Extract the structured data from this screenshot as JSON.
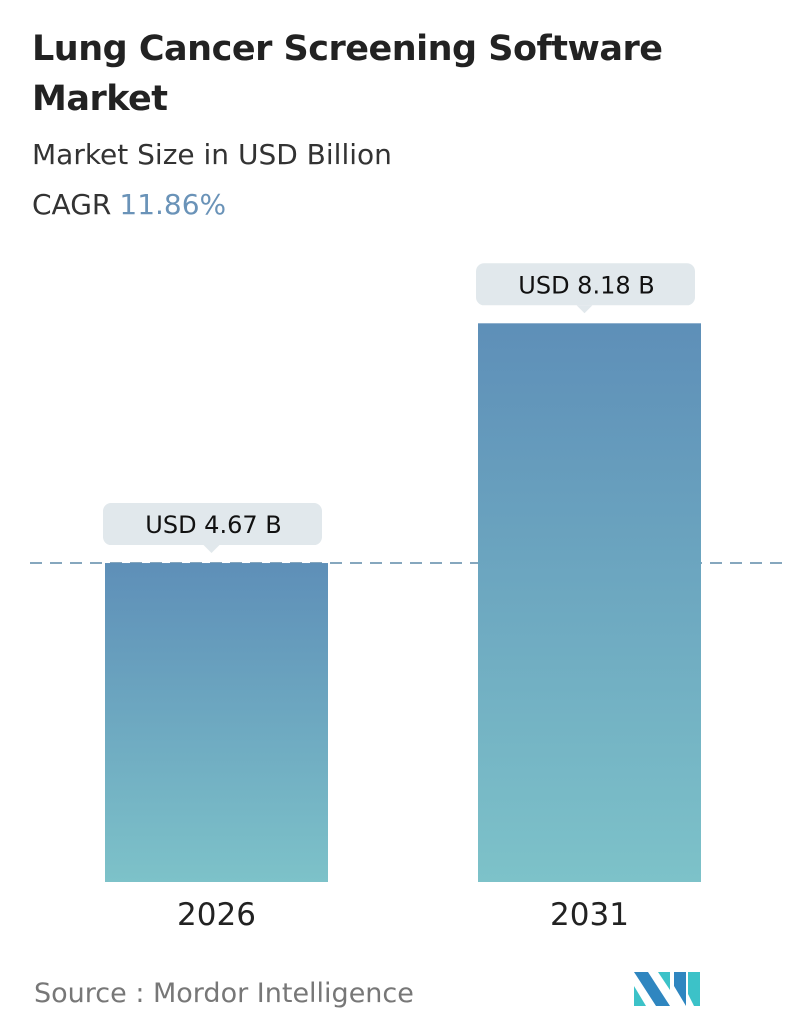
{
  "title": "Lung Cancer Screening Software Market",
  "subtitle": "Market Size in USD Billion",
  "cagr_label": "CAGR",
  "cagr_value": "11.86%",
  "source": "Source :  Mordor Intelligence",
  "colors": {
    "bar_top": "#5e8fb8",
    "bar_bottom": "#7dc2c9",
    "callout": "#e1e8ec",
    "cagr": "#6a93b8"
  },
  "chart_data": {
    "type": "bar",
    "categories": [
      "2026",
      "2031"
    ],
    "values": [
      4.67,
      8.18
    ],
    "data_labels": [
      "USD 4.67 B",
      "USD 8.18 B"
    ],
    "title": "Lung Cancer Screening Software Market",
    "ylabel": "Market Size in USD Billion",
    "grid": false,
    "reference_line": 4.67
  }
}
